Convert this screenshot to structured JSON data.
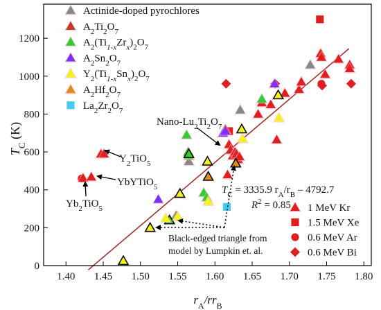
{
  "chart_data": {
    "type": "scatter",
    "xlabel_main": "r",
    "xlabel_sub1": "A",
    "xlabel_slash": "/r",
    "xlabel_sub2": "B",
    "ylabel_main": "T",
    "ylabel_sub": "C",
    "ylabel_unit": " (K)",
    "xlim": [
      1.37,
      1.81
    ],
    "ylim": [
      0,
      1380
    ],
    "xticks": [
      1.4,
      1.45,
      1.5,
      1.55,
      1.6,
      1.65,
      1.7,
      1.75,
      1.8
    ],
    "xtick_labels": [
      "1.40",
      "1.45",
      "1.50",
      "1.55",
      "1.60",
      "1.65",
      "1.70",
      "1.75",
      "1.80"
    ],
    "yticks": [
      0,
      200,
      400,
      600,
      800,
      1000,
      1200
    ],
    "ytick_labels": [
      "0",
      "200",
      "400",
      "600",
      "800",
      "1000",
      "1200"
    ],
    "colors": {
      "actinide": "#888888",
      "a2ti2o7": "#c0392b",
      "zr": "#33cc33",
      "sn": "#7b2ff7",
      "y_sn": "#f2f21e",
      "hf": "#e08c1a",
      "la_zr": "#47c9f0",
      "fit_line": "#a0322d",
      "marker_red": "#e02020"
    },
    "legend": {
      "series": [
        {
          "key": "actinide",
          "label": "Actinide-doped pyrochlores"
        },
        {
          "key": "a2ti2o7",
          "label": "A2Ti2O7"
        },
        {
          "key": "zr",
          "label": "A2(Ti1-xZrx)2O7"
        },
        {
          "key": "sn",
          "label": "A2Sn2O7"
        },
        {
          "key": "y_sn",
          "label": "Y2(Ti1-xSnx)2O7"
        },
        {
          "key": "hf",
          "label": "A2Hf2O7"
        },
        {
          "key": "la_zr",
          "label": "La2Zr2O7"
        }
      ],
      "ions": [
        {
          "shape": "triangle",
          "label": "1 MeV Kr"
        },
        {
          "shape": "square",
          "label": "1.5 MeV Xe"
        },
        {
          "shape": "circle",
          "label": "0.6 MeV Ar"
        },
        {
          "shape": "diamond",
          "label": "0.6 MeV Bi"
        }
      ]
    },
    "fit": {
      "equation_T": "T",
      "equation_C": "C",
      "equation_rest": " = 3335.9 r",
      "equation_A": "A",
      "equation_slash": "/r",
      "equation_B": "B",
      "equation_tail": " – 4792.7",
      "r2_R": "R",
      "r2_sup": "2",
      "r2_tail": " = 0.85",
      "slope": 3335.9,
      "intercept": -4792.7,
      "x_range": [
        1.43,
        1.78
      ]
    },
    "annotations": {
      "nano_main": "Nano-Lu",
      "nano_sub1": "2",
      "nano_mid": "Ti",
      "nano_sub2": "2",
      "nano_end": "O",
      "nano_sub3": "7",
      "y2tio5_a": "Y",
      "y2tio5_b": "2",
      "y2tio5_c": "TiO",
      "y2tio5_d": "5",
      "ybytio5_a": "YbYTiO",
      "ybytio5_b": "5",
      "yb2tio5_a": "Yb",
      "yb2tio5_b": "2",
      "yb2tio5_c": "TiO",
      "yb2tio5_d": "5",
      "lumpkin_line1": "Black-edged triangle from",
      "lumpkin_line2": "model by Lumpkin et. al."
    },
    "points": [
      {
        "x": 1.548,
        "y": 265,
        "s": "actinide",
        "m": "triangle"
      },
      {
        "x": 1.565,
        "y": 550,
        "s": "actinide",
        "m": "triangle"
      },
      {
        "x": 1.634,
        "y": 822,
        "s": "actinide",
        "m": "triangle"
      },
      {
        "x": 1.728,
        "y": 1060,
        "s": "actinide",
        "m": "triangle"
      },
      {
        "x": 1.447,
        "y": 590,
        "s": "a2ti2o7",
        "m": "triangle"
      },
      {
        "x": 1.451,
        "y": 590,
        "s": "a2ti2o7",
        "m": "triangle"
      },
      {
        "x": 1.421,
        "y": 460,
        "s": "a2ti2o7",
        "m": "circle"
      },
      {
        "x": 1.423,
        "y": 462,
        "s": "a2ti2o7",
        "m": "triangle"
      },
      {
        "x": 1.434,
        "y": 468,
        "s": "a2ti2o7",
        "m": "triangle"
      },
      {
        "x": 1.615,
        "y": 960,
        "s": "a2ti2o7",
        "m": "diamond"
      },
      {
        "x": 1.619,
        "y": 710,
        "s": "a2ti2o7",
        "m": "square"
      },
      {
        "x": 1.617,
        "y": 480,
        "s": "a2ti2o7",
        "m": "triangle"
      },
      {
        "x": 1.619,
        "y": 640,
        "s": "a2ti2o7",
        "m": "triangle"
      },
      {
        "x": 1.621,
        "y": 610,
        "s": "a2ti2o7",
        "m": "triangle"
      },
      {
        "x": 1.624,
        "y": 580,
        "s": "a2ti2o7",
        "m": "triangle"
      },
      {
        "x": 1.627,
        "y": 600,
        "s": "a2ti2o7",
        "m": "triangle"
      },
      {
        "x": 1.629,
        "y": 590,
        "s": "a2ti2o7",
        "m": "triangle"
      },
      {
        "x": 1.631,
        "y": 560,
        "s": "a2ti2o7",
        "m": "triangle"
      },
      {
        "x": 1.633,
        "y": 575,
        "s": "a2ti2o7",
        "m": "triangle"
      },
      {
        "x": 1.614,
        "y": 720,
        "s": "a2ti2o7",
        "m": "triangle"
      },
      {
        "x": 1.658,
        "y": 800,
        "s": "a2ti2o7",
        "m": "triangle"
      },
      {
        "x": 1.663,
        "y": 860,
        "s": "a2ti2o7",
        "m": "triangle"
      },
      {
        "x": 1.675,
        "y": 850,
        "s": "a2ti2o7",
        "m": "triangle"
      },
      {
        "x": 1.681,
        "y": 960,
        "s": "a2ti2o7",
        "m": "diamond"
      },
      {
        "x": 1.683,
        "y": 665,
        "s": "a2ti2o7",
        "m": "triangle"
      },
      {
        "x": 1.694,
        "y": 910,
        "s": "a2ti2o7",
        "m": "triangle"
      },
      {
        "x": 1.713,
        "y": 930,
        "s": "a2ti2o7",
        "m": "triangle"
      },
      {
        "x": 1.716,
        "y": 970,
        "s": "a2ti2o7",
        "m": "triangle"
      },
      {
        "x": 1.741,
        "y": 1300,
        "s": "a2ti2o7",
        "m": "square"
      },
      {
        "x": 1.742,
        "y": 1120,
        "s": "a2ti2o7",
        "m": "triangle"
      },
      {
        "x": 1.743,
        "y": 1100,
        "s": "a2ti2o7",
        "m": "triangle"
      },
      {
        "x": 1.743,
        "y": 960,
        "s": "a2ti2o7",
        "m": "circle"
      },
      {
        "x": 1.744,
        "y": 950,
        "s": "a2ti2o7",
        "m": "diamond"
      },
      {
        "x": 1.748,
        "y": 1010,
        "s": "a2ti2o7",
        "m": "triangle"
      },
      {
        "x": 1.766,
        "y": 1090,
        "s": "a2ti2o7",
        "m": "triangle"
      },
      {
        "x": 1.781,
        "y": 1060,
        "s": "a2ti2o7",
        "m": "triangle"
      },
      {
        "x": 1.781,
        "y": 1040,
        "s": "a2ti2o7",
        "m": "triangle"
      },
      {
        "x": 1.783,
        "y": 960,
        "s": "a2ti2o7",
        "m": "diamond"
      },
      {
        "x": 1.562,
        "y": 690,
        "s": "zr",
        "m": "triangle"
      },
      {
        "x": 1.564,
        "y": 600,
        "s": "zr",
        "m": "triangle"
      },
      {
        "x": 1.565,
        "y": 580,
        "s": "zr",
        "m": "triangle"
      },
      {
        "x": 1.585,
        "y": 385,
        "s": "zr",
        "m": "triangle"
      },
      {
        "x": 1.589,
        "y": 360,
        "s": "zr",
        "m": "triangle"
      },
      {
        "x": 1.663,
        "y": 880,
        "s": "zr",
        "m": "triangle"
      },
      {
        "x": 1.539,
        "y": 240,
        "s": "zr",
        "m": "triangle",
        "edge": true
      },
      {
        "x": 1.565,
        "y": 590,
        "s": "zr",
        "m": "triangle",
        "edge": true
      },
      {
        "x": 1.524,
        "y": 350,
        "s": "sn",
        "m": "triangle"
      },
      {
        "x": 1.611,
        "y": 700,
        "s": "sn",
        "m": "triangle"
      },
      {
        "x": 1.614,
        "y": 710,
        "s": "sn",
        "m": "triangle"
      },
      {
        "x": 1.68,
        "y": 960,
        "s": "sn",
        "m": "triangle"
      },
      {
        "x": 1.534,
        "y": 250,
        "s": "y_sn",
        "m": "triangle"
      },
      {
        "x": 1.55,
        "y": 260,
        "s": "y_sn",
        "m": "triangle"
      },
      {
        "x": 1.591,
        "y": 340,
        "s": "y_sn",
        "m": "triangle"
      },
      {
        "x": 1.637,
        "y": 670,
        "s": "y_sn",
        "m": "triangle"
      },
      {
        "x": 1.686,
        "y": 780,
        "s": "y_sn",
        "m": "triangle"
      },
      {
        "x": 1.513,
        "y": 200,
        "s": "y_sn",
        "m": "triangle",
        "edge": true
      },
      {
        "x": 1.477,
        "y": 25,
        "s": "y_sn",
        "m": "triangle",
        "edge": true
      },
      {
        "x": 1.553,
        "y": 380,
        "s": "y_sn",
        "m": "triangle",
        "edge": true
      },
      {
        "x": 1.59,
        "y": 550,
        "s": "y_sn",
        "m": "triangle",
        "edge": true
      },
      {
        "x": 1.636,
        "y": 720,
        "s": "y_sn",
        "m": "triangle",
        "edge": true
      },
      {
        "x": 1.685,
        "y": 900,
        "s": "y_sn",
        "m": "triangle",
        "edge": true
      },
      {
        "x": 1.591,
        "y": 470,
        "s": "hf",
        "m": "triangle",
        "edge": true
      },
      {
        "x": 1.628,
        "y": 540,
        "s": "hf",
        "m": "triangle",
        "edge": true
      },
      {
        "x": 1.616,
        "y": 310,
        "s": "la_zr",
        "m": "square"
      }
    ]
  }
}
